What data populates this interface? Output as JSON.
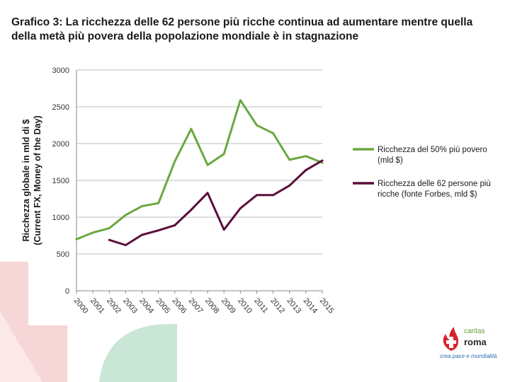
{
  "title": "Grafico 3: La ricchezza delle 62 persone più ricche continua ad aumentare mentre quella della metà più povera della popolazione mondiale è in stagnazione",
  "logo": {
    "brand_top": "caritas",
    "brand_main": "roma",
    "tagline": "crea pace e mondialità"
  },
  "chart_data": {
    "type": "line",
    "title": "",
    "ylabel_line1": "Ricchezza globale in mld di $",
    "ylabel_line2": "(Current FX, Money of the Day)",
    "xlabel": "",
    "ylim": [
      0,
      3000
    ],
    "yticks": [
      0,
      500,
      1000,
      1500,
      2000,
      2500,
      3000
    ],
    "categories": [
      "2000",
      "2001",
      "2002",
      "2003",
      "2004",
      "2005",
      "2006",
      "2007",
      "2008",
      "2009",
      "2010",
      "2011",
      "2012",
      "2013",
      "2014",
      "2015"
    ],
    "grid": true,
    "legend_position": "right",
    "series": [
      {
        "name_line1": "Ricchezza del 50% più povero",
        "name_line2": "(mld $)",
        "color": "#6aa841",
        "values": [
          700,
          790,
          850,
          1030,
          1150,
          1190,
          1760,
          2200,
          1710,
          1860,
          2590,
          2250,
          2140,
          1780,
          1830,
          1740
        ]
      },
      {
        "name_line1": "Ricchezza delle 62 persone più",
        "name_line2": "ricche (fonte Forbes, mld $)",
        "color": "#5a0f3a",
        "values": [
          null,
          null,
          690,
          620,
          760,
          820,
          890,
          1100,
          1330,
          830,
          1120,
          1300,
          1300,
          1430,
          1640,
          1770
        ]
      }
    ]
  }
}
